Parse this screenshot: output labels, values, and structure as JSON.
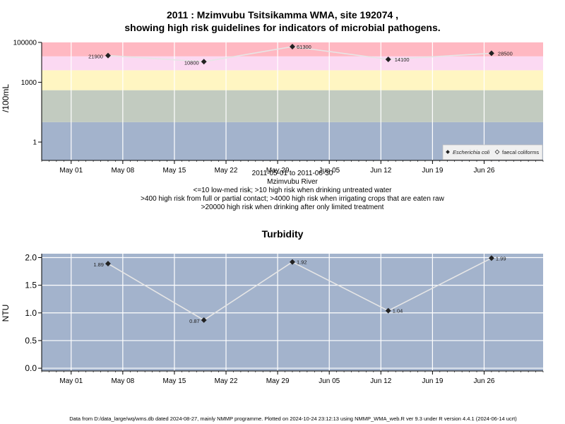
{
  "chart_data": [
    {
      "type": "line",
      "title_line1": "2011 : Mzimvubu Tsitsikamma WMA, site 192074 ,",
      "title_line2": "showing high risk guidelines for indicators of microbial pathogens.",
      "ylabel": "/100mL",
      "yscale": "log",
      "ylim": [
        0.12,
        100000
      ],
      "yticks": [
        1,
        1000,
        100000
      ],
      "ytick_labels": [
        "1",
        "1000",
        "100000"
      ],
      "xlim": [
        "2011-04-27",
        "2011-07-04"
      ],
      "xticks": [
        "2011-05-01",
        "2011-05-08",
        "2011-05-15",
        "2011-05-22",
        "2011-05-29",
        "2011-06-05",
        "2011-06-12",
        "2011-06-19",
        "2011-06-26"
      ],
      "xtick_labels": [
        "May 01",
        "May 08",
        "May 15",
        "May 22",
        "May 29",
        "Jun 05",
        "Jun 12",
        "Jun 19",
        "Jun 26"
      ],
      "bands": [
        {
          "from": 0.12,
          "to": 10,
          "color": "#a3b3cc"
        },
        {
          "from": 10,
          "to": 400,
          "color": "#c2cbc0"
        },
        {
          "from": 400,
          "to": 4000,
          "color": "#fff6c2"
        },
        {
          "from": 4000,
          "to": 20000,
          "color": "#fbd9f2"
        },
        {
          "from": 20000,
          "to": 100000,
          "color": "#ffb8c2"
        }
      ],
      "series": [
        {
          "name": "Escherichia coli",
          "dates": [
            "2011-05-06",
            "2011-05-19",
            "2011-05-31",
            "2011-06-13",
            "2011-06-27"
          ],
          "values": [
            21900,
            10800,
            61300,
            14100,
            28500
          ],
          "labels": [
            "21900",
            "10800",
            "61300",
            "14100",
            "28500"
          ]
        }
      ],
      "legend": {
        "position": "bottom-right",
        "items": [
          "Escherichia coli",
          "faecal coliforms"
        ]
      },
      "below_axis_text": [
        "2011-05-01 to 2011-06-30",
        "Mzimvubu River",
        "<=10 low-med risk; >10 high risk when drinking untreated water",
        ">400 high risk from full or partial contact; >4000 high risk when irrigating crops that are eaten raw",
        ">20000 high risk when drinking after only limited treatment"
      ]
    },
    {
      "type": "line",
      "title": "Turbidity",
      "ylabel": "NTU",
      "ylim": [
        -0.05,
        2.07
      ],
      "yticks": [
        0.0,
        0.5,
        1.0,
        1.5,
        2.0
      ],
      "ytick_labels": [
        "0.0",
        "0.5",
        "1.0",
        "1.5",
        "2.0"
      ],
      "xlim": [
        "2011-04-27",
        "2011-07-04"
      ],
      "xticks": [
        "2011-05-01",
        "2011-05-08",
        "2011-05-15",
        "2011-05-22",
        "2011-05-29",
        "2011-06-05",
        "2011-06-12",
        "2011-06-19",
        "2011-06-26"
      ],
      "xtick_labels": [
        "May 01",
        "May 08",
        "May 15",
        "May 22",
        "May 29",
        "Jun 05",
        "Jun 12",
        "Jun 19",
        "Jun 26"
      ],
      "background": "#a3b3cc",
      "series": [
        {
          "dates": [
            "2011-05-06",
            "2011-05-19",
            "2011-05-31",
            "2011-06-13",
            "2011-06-27"
          ],
          "values": [
            1.89,
            0.87,
            1.92,
            1.04,
            1.99
          ],
          "labels": [
            "1.89",
            "0.87",
            "1.92",
            "1.04",
            "1.99"
          ]
        }
      ]
    }
  ],
  "footer": "Data from D:/data_large/wq/wms.db dated 2024-08-27, mainly NMMP programme. Plotted on 2024-10-24 23:12:13 using NMMP_WMA_web.R ver 9.3 under R version 4.4.1 (2024-06-14 ucrt)"
}
